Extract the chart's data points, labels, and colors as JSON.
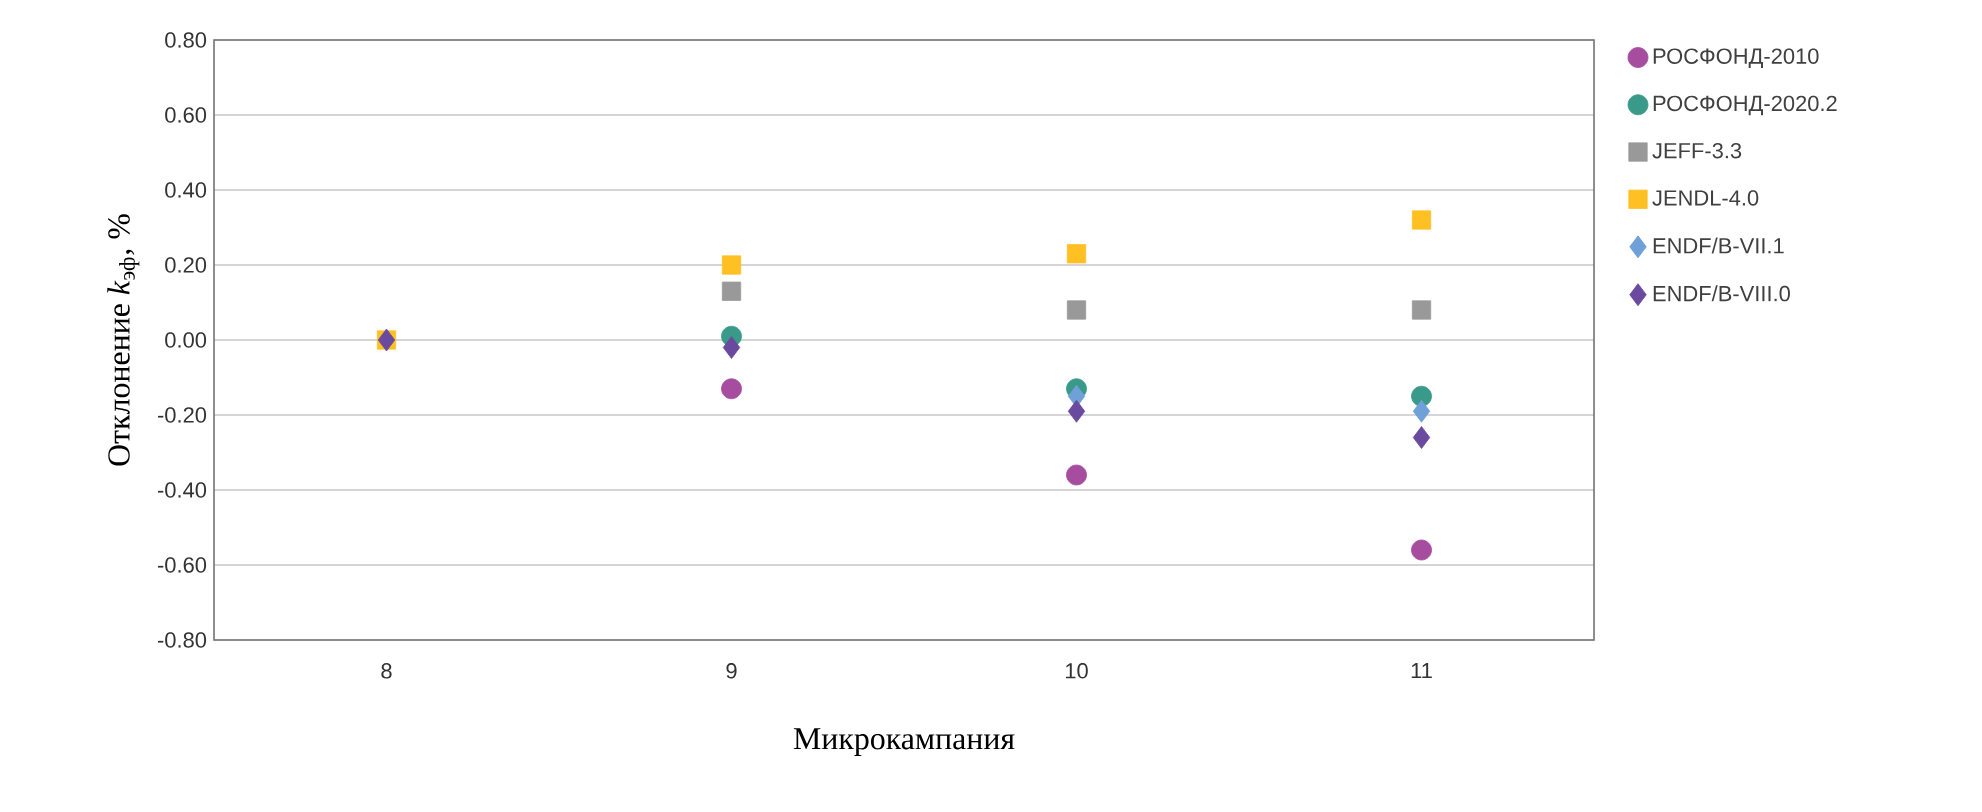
{
  "chart_data": {
    "type": "scatter",
    "xlabel": "Микрокампания",
    "ylabel": "Отклонение *k*$_{эф}$, %",
    "categories": [
      "8",
      "9",
      "10",
      "11"
    ],
    "series": [
      {
        "name": "РОСФОНД-2010",
        "color": "#a64d9f",
        "marker": "circle",
        "values": [
          null,
          -0.13,
          -0.36,
          -0.56
        ]
      },
      {
        "name": "РОСФОНД-2020.2",
        "color": "#3a9a8a",
        "marker": "circle",
        "values": [
          null,
          0.01,
          -0.13,
          -0.15
        ]
      },
      {
        "name": "JEFF-3.3",
        "color": "#999999",
        "marker": "square",
        "values": [
          null,
          0.13,
          0.08,
          0.08
        ]
      },
      {
        "name": "JENDL-4.0",
        "color": "#ffc024",
        "marker": "square",
        "values": [
          0,
          0.2,
          0.23,
          0.32
        ]
      },
      {
        "name": "ENDF/B-VII.1",
        "color": "#6fa0d8",
        "marker": "diamond",
        "values": [
          null,
          null,
          -0.15,
          -0.19
        ]
      },
      {
        "name": "ENDF/B-VIII.0",
        "color": "#6a4a9e",
        "marker": "diamond",
        "values": [
          0,
          -0.02,
          -0.19,
          -0.26
        ]
      }
    ],
    "ylim": [
      -0.8,
      0.8
    ],
    "yticks": [
      {
        "value": -0.8,
        "label": "-0.80"
      },
      {
        "value": -0.6,
        "label": "-0.60"
      },
      {
        "value": -0.4,
        "label": "-0.40"
      },
      {
        "value": -0.2,
        "label": "-0.20"
      },
      {
        "value": 0,
        "label": "0.00"
      },
      {
        "value": 0.2,
        "label": "0.20"
      },
      {
        "value": 0.4,
        "label": "0.40"
      },
      {
        "value": 0.6,
        "label": "0.60"
      },
      {
        "value": 0.8,
        "label": "0.80"
      }
    ],
    "grid": "y",
    "legend": "right"
  }
}
